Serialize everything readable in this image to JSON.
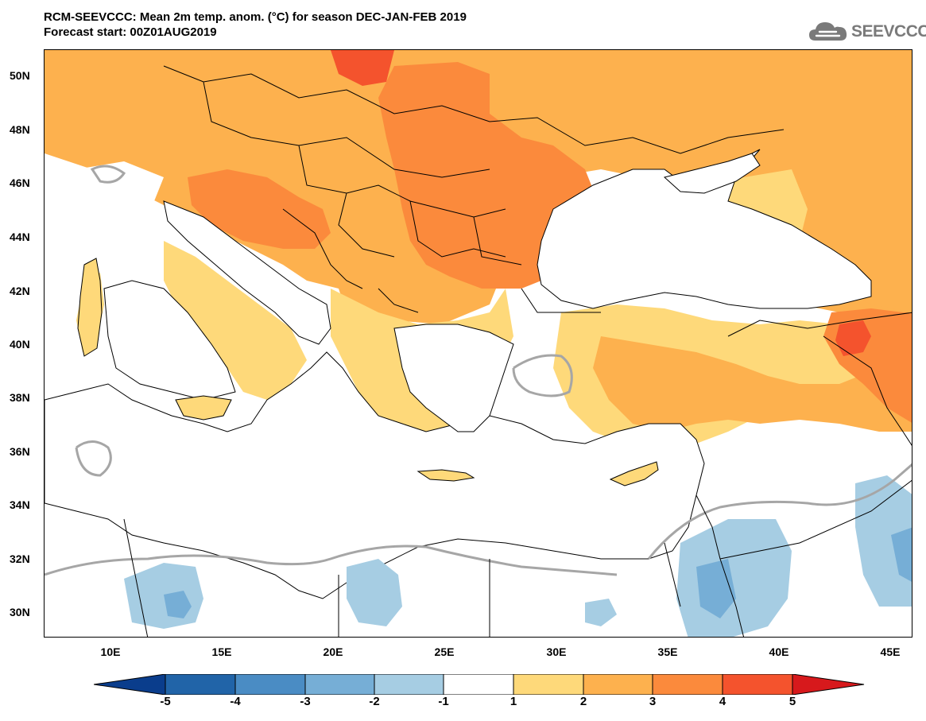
{
  "header": {
    "title_line1": "RCM-SEEVCCC: Mean 2m temp. anom. (°C) for season DEC-JAN-FEB 2019",
    "title_line2": "Forecast start: 00Z01AUG2019"
  },
  "logo": {
    "text": "SEEVCCC",
    "icon": "cloud-icon",
    "color": "#7a7a7a"
  },
  "map": {
    "projection": "lat-lon",
    "lon_range": [
      7,
      46
    ],
    "lat_range": [
      29,
      51
    ],
    "lat_ticks": [
      "50N",
      "48N",
      "46N",
      "44N",
      "42N",
      "40N",
      "38N",
      "36N",
      "34N",
      "32N",
      "30N"
    ],
    "lon_ticks": [
      "10E",
      "15E",
      "20E",
      "25E",
      "30E",
      "35E",
      "40E",
      "45E"
    ],
    "zero_contour_color": "#a6a6a6",
    "border_color": "#000000"
  },
  "colorbar": {
    "labels": [
      "-5",
      "-4",
      "-3",
      "-2",
      "-1",
      "1",
      "2",
      "3",
      "4",
      "5"
    ],
    "colors": [
      "#0a3d8c",
      "#2164a8",
      "#4a8cc4",
      "#76aed6",
      "#a6cde3",
      "#ffffff",
      "#fed97a",
      "#fdb14e",
      "#fb8a3c",
      "#f4532d",
      "#d7191c"
    ],
    "extend": "both"
  }
}
